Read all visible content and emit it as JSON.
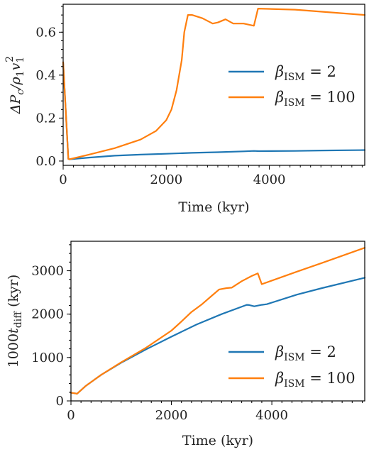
{
  "chart_data": [
    {
      "type": "line",
      "xlabel": "Time (kyr)",
      "ylabel_parts": [
        "ΔP",
        "c",
        "/ρ",
        "1",
        "v",
        "1",
        "2"
      ],
      "xlim": [
        0,
        5850
      ],
      "ylim": [
        -0.02,
        0.73
      ],
      "xticks": [
        0,
        2000,
        4000
      ],
      "yticks": [
        0.0,
        0.2,
        0.4,
        0.6
      ],
      "ytick_labels": [
        "0.0",
        "0.2",
        "0.4",
        "0.6"
      ],
      "grid": false,
      "legend_position": "center-right",
      "series": [
        {
          "name": "β_ISM = 2",
          "label_main": "β",
          "label_sub": "ISM",
          "label_rest": " = 2",
          "color": "#1f77b4",
          "x": [
            0,
            100,
            120,
            500,
            1000,
            1500,
            2000,
            2500,
            3000,
            3500,
            3700,
            3800,
            4500,
            5000,
            5850
          ],
          "y": [
            0.46,
            0.01,
            0.008,
            0.016,
            0.025,
            0.03,
            0.034,
            0.038,
            0.041,
            0.045,
            0.047,
            0.046,
            0.047,
            0.049,
            0.051
          ]
        },
        {
          "name": "β_ISM = 100",
          "label_main": "β",
          "label_sub": "ISM",
          "label_rest": " = 100",
          "color": "#ff7f0e",
          "x": [
            0,
            100,
            120,
            500,
            1000,
            1500,
            1800,
            2000,
            2100,
            2200,
            2300,
            2350,
            2420,
            2500,
            2700,
            2900,
            3000,
            3100,
            3150,
            3300,
            3500,
            3700,
            3780,
            4500,
            5850
          ],
          "y": [
            0.46,
            0.01,
            0.008,
            0.03,
            0.06,
            0.1,
            0.14,
            0.19,
            0.24,
            0.33,
            0.47,
            0.6,
            0.68,
            0.68,
            0.665,
            0.64,
            0.645,
            0.655,
            0.66,
            0.64,
            0.64,
            0.63,
            0.71,
            0.705,
            0.68
          ]
        }
      ]
    },
    {
      "type": "line",
      "xlabel": "Time (kyr)",
      "ylabel_parts": [
        "1000t",
        "diff",
        " (kyr)"
      ],
      "xlim": [
        0,
        5850
      ],
      "ylim": [
        0,
        3680
      ],
      "xticks": [
        0,
        2000,
        4000
      ],
      "yticks": [
        0,
        1000,
        2000,
        3000
      ],
      "ytick_labels": [
        "0",
        "1000",
        "2000",
        "3000"
      ],
      "grid": false,
      "legend_position": "lower-right",
      "series": [
        {
          "name": "β_ISM = 2",
          "label_main": "β",
          "label_sub": "ISM",
          "label_rest": " = 2",
          "color": "#1f77b4",
          "x": [
            0,
            100,
            120,
            300,
            600,
            1000,
            1500,
            2000,
            2500,
            3000,
            3500,
            3550,
            3650,
            3800,
            3900,
            4500,
            5000,
            5850
          ],
          "y": [
            190,
            170,
            165,
            350,
            600,
            880,
            1190,
            1480,
            1760,
            2000,
            2215,
            2210,
            2180,
            2215,
            2230,
            2450,
            2600,
            2840
          ]
        },
        {
          "name": "β_ISM = 100",
          "label_main": "β",
          "label_sub": "ISM",
          "label_rest": " = 100",
          "color": "#ff7f0e",
          "x": [
            0,
            100,
            120,
            300,
            600,
            1000,
            1500,
            2000,
            2200,
            2400,
            2600,
            2800,
            2950,
            3100,
            3200,
            3400,
            3600,
            3720,
            3800,
            4500,
            5000,
            5850
          ],
          "y": [
            190,
            170,
            165,
            350,
            600,
            890,
            1230,
            1620,
            1830,
            2050,
            2220,
            2420,
            2570,
            2600,
            2610,
            2760,
            2880,
            2940,
            2690,
            2980,
            3180,
            3530
          ]
        }
      ]
    }
  ]
}
